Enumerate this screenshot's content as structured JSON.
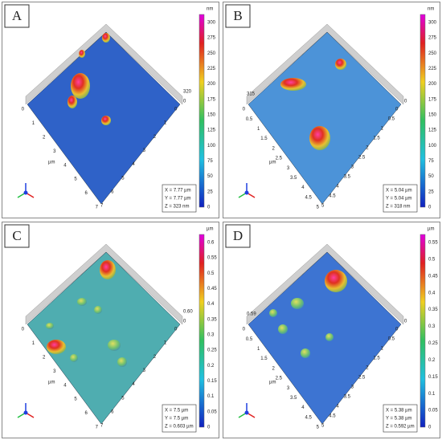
{
  "panels": [
    {
      "label": "A",
      "unit": "nm",
      "ticks": [
        "0",
        "25",
        "50",
        "75",
        "100",
        "125",
        "150",
        "175",
        "200",
        "225",
        "250",
        "275",
        "300"
      ],
      "z_label": "320",
      "z_zero": "0",
      "edge_ticks": [
        "0",
        "1",
        "2",
        "3",
        "4",
        "5",
        "6",
        "7"
      ],
      "edge_unit": "µm",
      "dims": [
        "X = 7.77 µm",
        "Y = 7.77 µm",
        "Z = 323 nm"
      ]
    },
    {
      "label": "B",
      "unit": "nm",
      "ticks": [
        "0",
        "25",
        "50",
        "75",
        "100",
        "125",
        "150",
        "175",
        "200",
        "225",
        "250",
        "275",
        "300"
      ],
      "z_label": "315",
      "z_zero": "0",
      "edge_ticks": [
        "0",
        "0.5",
        "1",
        "1.5",
        "2",
        "2.5",
        "3",
        "3.5",
        "4",
        "4.5",
        "5"
      ],
      "edge_unit": "µm",
      "dims": [
        "X = 5.04 µm",
        "Y = 5.04 µm",
        "Z = 318 nm"
      ]
    },
    {
      "label": "C",
      "unit": "µm",
      "ticks": [
        "0",
        "0.05",
        "0.1",
        "0.15",
        "0.2",
        "0.25",
        "0.3",
        "0.35",
        "0.4",
        "0.45",
        "0.5",
        "0.55",
        "0.6"
      ],
      "z_label": "0.60",
      "z_zero": "0",
      "edge_ticks": [
        "0",
        "1",
        "2",
        "3",
        "4",
        "5",
        "6",
        "7"
      ],
      "edge_unit": "µm",
      "dims": [
        "X = 7.5 µm",
        "Y = 7.5 µm",
        "Z = 0.603 µm"
      ]
    },
    {
      "label": "D",
      "unit": "µm",
      "ticks": [
        "0",
        "0.05",
        "0.1",
        "0.15",
        "0.2",
        "0.25",
        "0.3",
        "0.35",
        "0.4",
        "0.45",
        "0.5",
        "0.55"
      ],
      "z_label": "0.59",
      "z_zero": "0",
      "edge_ticks": [
        "0",
        "0.5",
        "1",
        "1.5",
        "2",
        "2.5",
        "3",
        "3.5",
        "4",
        "4.5",
        "5"
      ],
      "edge_unit": "µm",
      "dims": [
        "X = 5.38 µm",
        "Y = 5.38 µm",
        "Z = 0.592 µm"
      ]
    }
  ]
}
